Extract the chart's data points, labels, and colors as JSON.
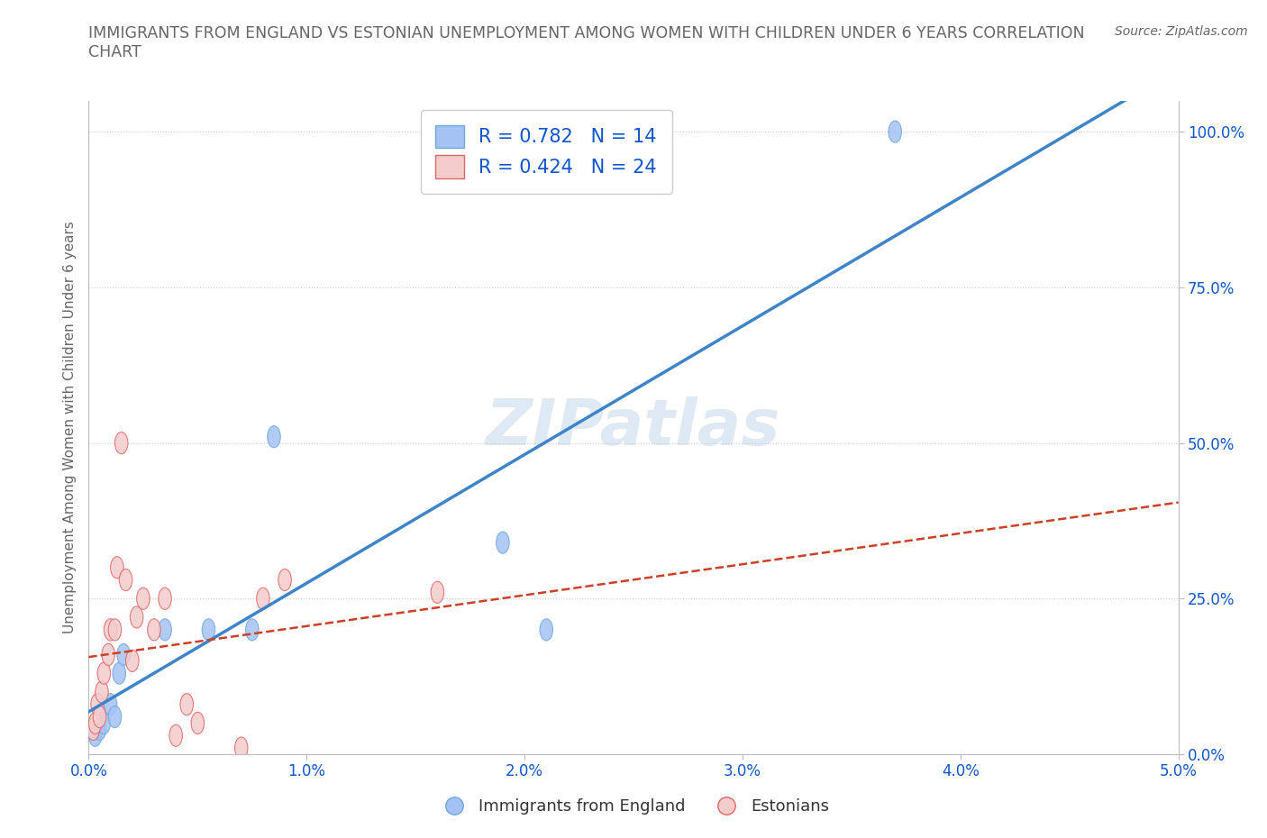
{
  "title": "IMMIGRANTS FROM ENGLAND VS ESTONIAN UNEMPLOYMENT AMONG WOMEN WITH CHILDREN UNDER 6 YEARS CORRELATION\nCHART",
  "source": "Source: ZipAtlas.com",
  "ylabel": "Unemployment Among Women with Children Under 6 years",
  "xlim": [
    0.0,
    0.05
  ],
  "ylim": [
    0.0,
    1.05
  ],
  "yticks": [
    0.0,
    0.25,
    0.5,
    0.75,
    1.0
  ],
  "ytick_labels": [
    "0.0%",
    "25.0%",
    "50.0%",
    "75.0%",
    "100.0%"
  ],
  "xticks": [
    0.0,
    0.01,
    0.02,
    0.03,
    0.04,
    0.05
  ],
  "xtick_labels": [
    "0.0%",
    "1.0%",
    "2.0%",
    "3.0%",
    "4.0%",
    "5.0%"
  ],
  "england_x": [
    0.0003,
    0.0005,
    0.0007,
    0.001,
    0.0012,
    0.0014,
    0.0016,
    0.0035,
    0.0055,
    0.0075,
    0.0085,
    0.019,
    0.021,
    0.037
  ],
  "england_y": [
    0.03,
    0.04,
    0.05,
    0.08,
    0.06,
    0.13,
    0.16,
    0.2,
    0.2,
    0.2,
    0.51,
    0.34,
    0.2,
    1.0
  ],
  "estonian_x": [
    0.0002,
    0.0003,
    0.0004,
    0.0005,
    0.0006,
    0.0007,
    0.0009,
    0.001,
    0.0012,
    0.0013,
    0.0015,
    0.0017,
    0.002,
    0.0022,
    0.0025,
    0.003,
    0.0035,
    0.004,
    0.0045,
    0.005,
    0.007,
    0.008,
    0.009,
    0.016
  ],
  "estonian_y": [
    0.04,
    0.05,
    0.08,
    0.06,
    0.1,
    0.13,
    0.16,
    0.2,
    0.2,
    0.3,
    0.5,
    0.28,
    0.15,
    0.22,
    0.25,
    0.2,
    0.25,
    0.03,
    0.08,
    0.05,
    0.01,
    0.25,
    0.28,
    0.26
  ],
  "england_color": "#a4c2f4",
  "england_edge_color": "#6fa8dc",
  "estonian_color": "#f4cccc",
  "estonian_edge_color": "#e06666",
  "england_line_color": "#3d85c8",
  "estonian_line_color": "#cc4125",
  "england_R": 0.782,
  "england_N": 14,
  "estonian_R": 0.424,
  "estonian_N": 24,
  "legend_R_color": "#1155cc",
  "watermark": "ZIPatlas",
  "background_color": "#ffffff",
  "grid_color": "#cccccc",
  "title_color": "#666666",
  "axis_label_color": "#666666",
  "tick_label_color": "#1155cc"
}
